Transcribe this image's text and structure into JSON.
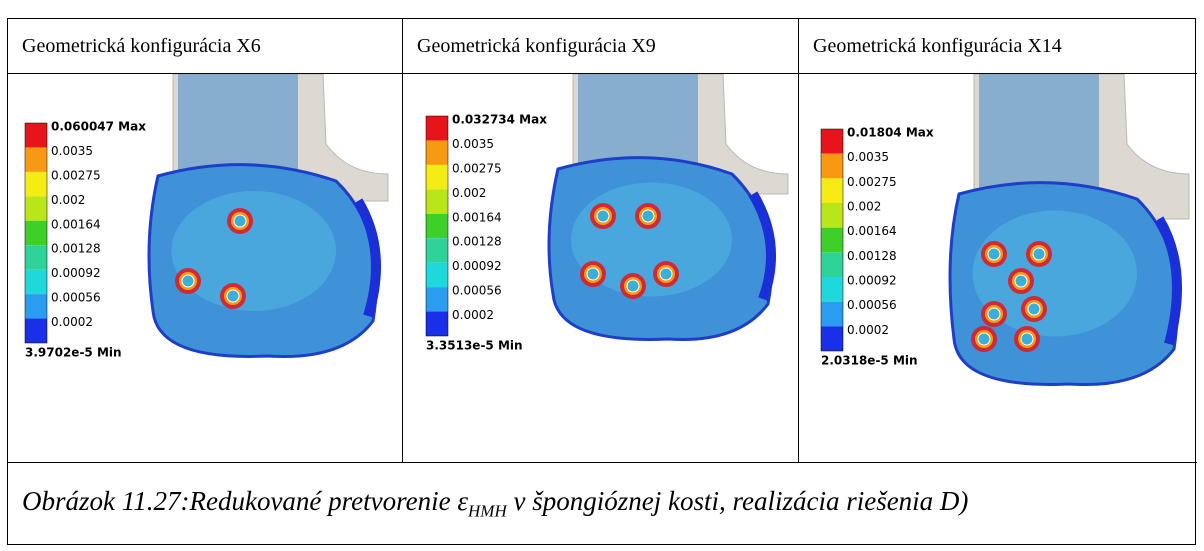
{
  "panels": [
    {
      "title": "Geometrická konfigurácia X6",
      "legend": [
        "0.060047 Max",
        "0.0035",
        "0.00275",
        "0.002",
        "0.00164",
        "0.00128",
        "0.00092",
        "0.00056",
        "0.0002",
        "3.9702e-5 Min"
      ]
    },
    {
      "title": "Geometrická konfigurácia X9",
      "legend": [
        "0.032734 Max",
        "0.0035",
        "0.00275",
        "0.002",
        "0.00164",
        "0.00128",
        "0.00092",
        "0.00056",
        "0.0002",
        "3.3513e-5 Min"
      ]
    },
    {
      "title": "Geometrická konfigurácia X14",
      "legend": [
        "0.01804 Max",
        "0.0035",
        "0.00275",
        "0.002",
        "0.00164",
        "0.00128",
        "0.00092",
        "0.00056",
        "0.0002",
        "2.0318e-5 Min"
      ]
    }
  ],
  "caption": {
    "prefix": "Obrázok 11.27:Redukované pretvorenie ε",
    "subscript": "HMH",
    "suffix": " v špongióznej kosti, realizácia riešenia D)"
  }
}
